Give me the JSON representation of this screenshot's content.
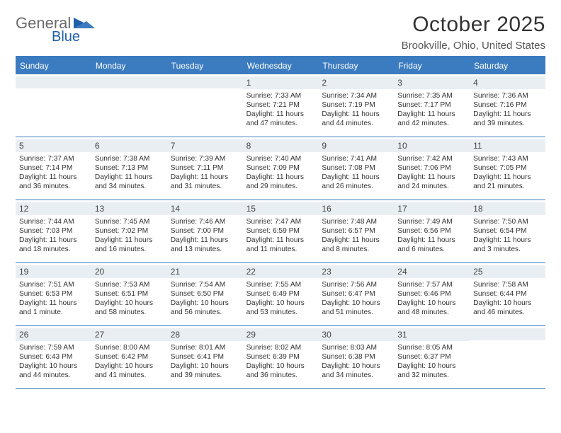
{
  "logo": {
    "word1": "General",
    "word2": "Blue"
  },
  "title": "October 2025",
  "location": "Brookville, Ohio, United States",
  "dayNames": [
    "Sunday",
    "Monday",
    "Tuesday",
    "Wednesday",
    "Thursday",
    "Friday",
    "Saturday"
  ],
  "colors": {
    "headerBlue": "#3b7bbf",
    "stripe": "#e9eef3",
    "text": "#333333"
  },
  "weeks": [
    [
      {
        "n": "",
        "sr": "",
        "ss": "",
        "d1": "",
        "d2": ""
      },
      {
        "n": "",
        "sr": "",
        "ss": "",
        "d1": "",
        "d2": ""
      },
      {
        "n": "",
        "sr": "",
        "ss": "",
        "d1": "",
        "d2": ""
      },
      {
        "n": "1",
        "sr": "Sunrise: 7:33 AM",
        "ss": "Sunset: 7:21 PM",
        "d1": "Daylight: 11 hours",
        "d2": "and 47 minutes."
      },
      {
        "n": "2",
        "sr": "Sunrise: 7:34 AM",
        "ss": "Sunset: 7:19 PM",
        "d1": "Daylight: 11 hours",
        "d2": "and 44 minutes."
      },
      {
        "n": "3",
        "sr": "Sunrise: 7:35 AM",
        "ss": "Sunset: 7:17 PM",
        "d1": "Daylight: 11 hours",
        "d2": "and 42 minutes."
      },
      {
        "n": "4",
        "sr": "Sunrise: 7:36 AM",
        "ss": "Sunset: 7:16 PM",
        "d1": "Daylight: 11 hours",
        "d2": "and 39 minutes."
      }
    ],
    [
      {
        "n": "5",
        "sr": "Sunrise: 7:37 AM",
        "ss": "Sunset: 7:14 PM",
        "d1": "Daylight: 11 hours",
        "d2": "and 36 minutes."
      },
      {
        "n": "6",
        "sr": "Sunrise: 7:38 AM",
        "ss": "Sunset: 7:13 PM",
        "d1": "Daylight: 11 hours",
        "d2": "and 34 minutes."
      },
      {
        "n": "7",
        "sr": "Sunrise: 7:39 AM",
        "ss": "Sunset: 7:11 PM",
        "d1": "Daylight: 11 hours",
        "d2": "and 31 minutes."
      },
      {
        "n": "8",
        "sr": "Sunrise: 7:40 AM",
        "ss": "Sunset: 7:09 PM",
        "d1": "Daylight: 11 hours",
        "d2": "and 29 minutes."
      },
      {
        "n": "9",
        "sr": "Sunrise: 7:41 AM",
        "ss": "Sunset: 7:08 PM",
        "d1": "Daylight: 11 hours",
        "d2": "and 26 minutes."
      },
      {
        "n": "10",
        "sr": "Sunrise: 7:42 AM",
        "ss": "Sunset: 7:06 PM",
        "d1": "Daylight: 11 hours",
        "d2": "and 24 minutes."
      },
      {
        "n": "11",
        "sr": "Sunrise: 7:43 AM",
        "ss": "Sunset: 7:05 PM",
        "d1": "Daylight: 11 hours",
        "d2": "and 21 minutes."
      }
    ],
    [
      {
        "n": "12",
        "sr": "Sunrise: 7:44 AM",
        "ss": "Sunset: 7:03 PM",
        "d1": "Daylight: 11 hours",
        "d2": "and 18 minutes."
      },
      {
        "n": "13",
        "sr": "Sunrise: 7:45 AM",
        "ss": "Sunset: 7:02 PM",
        "d1": "Daylight: 11 hours",
        "d2": "and 16 minutes."
      },
      {
        "n": "14",
        "sr": "Sunrise: 7:46 AM",
        "ss": "Sunset: 7:00 PM",
        "d1": "Daylight: 11 hours",
        "d2": "and 13 minutes."
      },
      {
        "n": "15",
        "sr": "Sunrise: 7:47 AM",
        "ss": "Sunset: 6:59 PM",
        "d1": "Daylight: 11 hours",
        "d2": "and 11 minutes."
      },
      {
        "n": "16",
        "sr": "Sunrise: 7:48 AM",
        "ss": "Sunset: 6:57 PM",
        "d1": "Daylight: 11 hours",
        "d2": "and 8 minutes."
      },
      {
        "n": "17",
        "sr": "Sunrise: 7:49 AM",
        "ss": "Sunset: 6:56 PM",
        "d1": "Daylight: 11 hours",
        "d2": "and 6 minutes."
      },
      {
        "n": "18",
        "sr": "Sunrise: 7:50 AM",
        "ss": "Sunset: 6:54 PM",
        "d1": "Daylight: 11 hours",
        "d2": "and 3 minutes."
      }
    ],
    [
      {
        "n": "19",
        "sr": "Sunrise: 7:51 AM",
        "ss": "Sunset: 6:53 PM",
        "d1": "Daylight: 11 hours",
        "d2": "and 1 minute."
      },
      {
        "n": "20",
        "sr": "Sunrise: 7:53 AM",
        "ss": "Sunset: 6:51 PM",
        "d1": "Daylight: 10 hours",
        "d2": "and 58 minutes."
      },
      {
        "n": "21",
        "sr": "Sunrise: 7:54 AM",
        "ss": "Sunset: 6:50 PM",
        "d1": "Daylight: 10 hours",
        "d2": "and 56 minutes."
      },
      {
        "n": "22",
        "sr": "Sunrise: 7:55 AM",
        "ss": "Sunset: 6:49 PM",
        "d1": "Daylight: 10 hours",
        "d2": "and 53 minutes."
      },
      {
        "n": "23",
        "sr": "Sunrise: 7:56 AM",
        "ss": "Sunset: 6:47 PM",
        "d1": "Daylight: 10 hours",
        "d2": "and 51 minutes."
      },
      {
        "n": "24",
        "sr": "Sunrise: 7:57 AM",
        "ss": "Sunset: 6:46 PM",
        "d1": "Daylight: 10 hours",
        "d2": "and 48 minutes."
      },
      {
        "n": "25",
        "sr": "Sunrise: 7:58 AM",
        "ss": "Sunset: 6:44 PM",
        "d1": "Daylight: 10 hours",
        "d2": "and 46 minutes."
      }
    ],
    [
      {
        "n": "26",
        "sr": "Sunrise: 7:59 AM",
        "ss": "Sunset: 6:43 PM",
        "d1": "Daylight: 10 hours",
        "d2": "and 44 minutes."
      },
      {
        "n": "27",
        "sr": "Sunrise: 8:00 AM",
        "ss": "Sunset: 6:42 PM",
        "d1": "Daylight: 10 hours",
        "d2": "and 41 minutes."
      },
      {
        "n": "28",
        "sr": "Sunrise: 8:01 AM",
        "ss": "Sunset: 6:41 PM",
        "d1": "Daylight: 10 hours",
        "d2": "and 39 minutes."
      },
      {
        "n": "29",
        "sr": "Sunrise: 8:02 AM",
        "ss": "Sunset: 6:39 PM",
        "d1": "Daylight: 10 hours",
        "d2": "and 36 minutes."
      },
      {
        "n": "30",
        "sr": "Sunrise: 8:03 AM",
        "ss": "Sunset: 6:38 PM",
        "d1": "Daylight: 10 hours",
        "d2": "and 34 minutes."
      },
      {
        "n": "31",
        "sr": "Sunrise: 8:05 AM",
        "ss": "Sunset: 6:37 PM",
        "d1": "Daylight: 10 hours",
        "d2": "and 32 minutes."
      },
      {
        "n": "",
        "sr": "",
        "ss": "",
        "d1": "",
        "d2": ""
      }
    ]
  ]
}
